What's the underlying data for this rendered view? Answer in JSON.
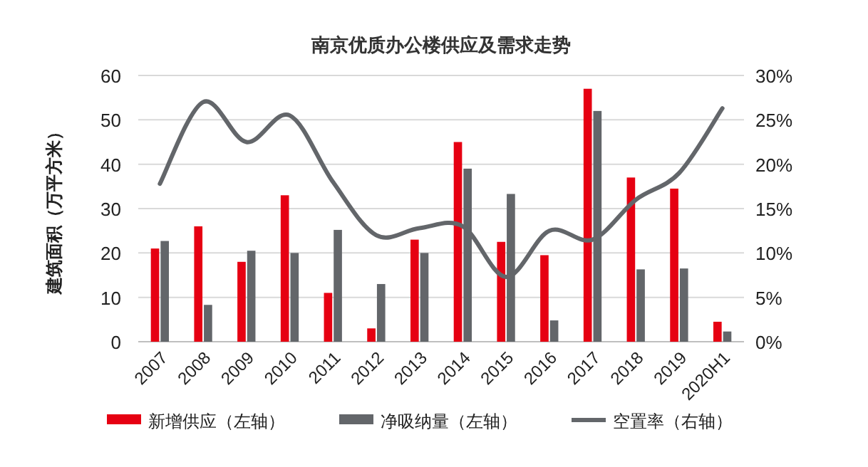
{
  "chart_data": {
    "type": "bar",
    "title": "南京优质办公楼供应及需求走势",
    "ylabel": "建筑面积（万平方米）",
    "categories": [
      "2007",
      "2008",
      "2009",
      "2010",
      "2011",
      "2012",
      "2013",
      "2014",
      "2015",
      "2016",
      "2017",
      "2018",
      "2019",
      "2020H1"
    ],
    "series": [
      {
        "name": "新增供应（左轴）",
        "color": "#e60012",
        "values": [
          21,
          26,
          18,
          33,
          11,
          3,
          23,
          45,
          22.5,
          19.5,
          57,
          37,
          34.5,
          4.5
        ]
      },
      {
        "name": "净吸纳量（左轴）",
        "color": "#63666a",
        "values": [
          22.7,
          8.3,
          20.5,
          20,
          25.2,
          13,
          20,
          39,
          33.3,
          4.8,
          52,
          16.3,
          16.5,
          2.3
        ]
      },
      {
        "name": "空置率（右轴）",
        "type": "line",
        "axis": "y2",
        "color": "#63666a",
        "values": [
          17.8,
          27,
          22.5,
          25.5,
          18,
          12,
          12.8,
          13,
          7.3,
          12.5,
          11.5,
          16,
          19,
          26.3
        ]
      }
    ],
    "ylim": [
      0,
      60
    ],
    "yticks": [
      0,
      10,
      20,
      30,
      40,
      50,
      60
    ],
    "y2lim": [
      0,
      30
    ],
    "y2ticks": [
      {
        "value": 0,
        "label": "0%"
      },
      {
        "value": 5,
        "label": "5%"
      },
      {
        "value": 10,
        "label": "10%"
      },
      {
        "value": 15,
        "label": "15%"
      },
      {
        "value": 20,
        "label": "20%"
      },
      {
        "value": 25,
        "label": "25%"
      },
      {
        "value": 30,
        "label": "30%"
      }
    ],
    "grid": "y",
    "legend": "bottom"
  }
}
